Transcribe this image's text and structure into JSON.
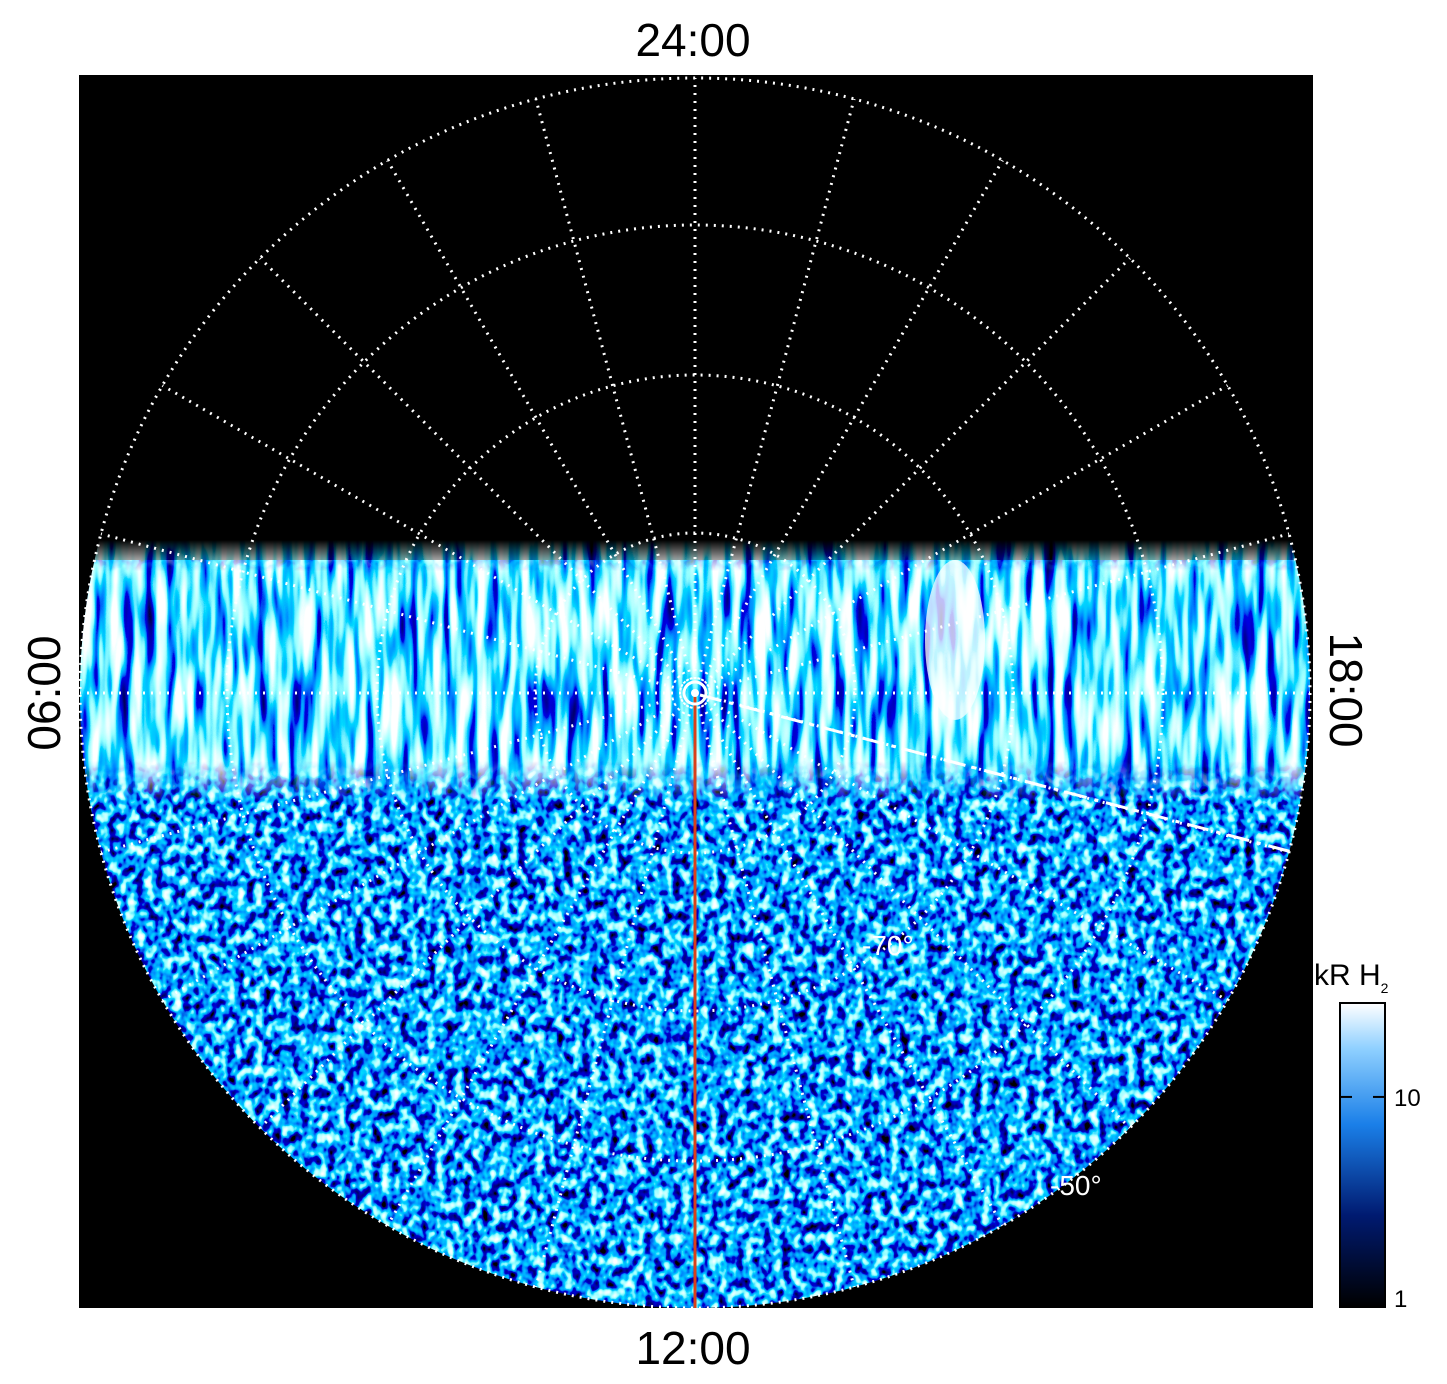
{
  "labels": {
    "top": "24:00",
    "bottom": "12:00",
    "left": "06:00",
    "right": "18:00"
  },
  "latitude_labels": [
    "-70°",
    "-50°"
  ],
  "colorbar": {
    "title": "kR H",
    "title_sub": "2",
    "scale": "log",
    "lim": [
      1,
      28
    ],
    "ticks": [
      1,
      10
    ]
  }
}
